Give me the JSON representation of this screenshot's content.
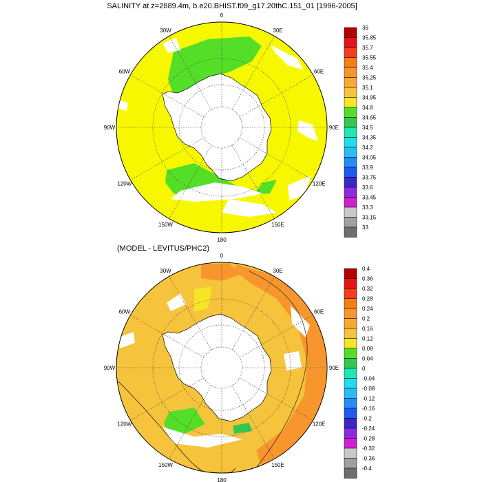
{
  "page_title": "SALINITY at z=2889.4m, b.e20.BHIST.f09_g17.20thC.151_01 [1996-2005]",
  "chart_data": [
    {
      "type": "map",
      "projection": "south polar stereographic",
      "title": "SALINITY at z=2889.4m, b.e20.BHIST.f09_g17.20thC.151_01 [1996-2005]",
      "longitude_labels": [
        "0",
        "30E",
        "60E",
        "90E",
        "120E",
        "150E",
        "180",
        "150W",
        "120W",
        "90W",
        "60W",
        "30W"
      ],
      "colorbar": {
        "levels": [
          "36",
          "35.85",
          "35.7",
          "35.55",
          "35.4",
          "35.25",
          "35.1",
          "34.95",
          "34.8",
          "34.65",
          "34.5",
          "34.35",
          "34.2",
          "34.05",
          "33.9",
          "33.75",
          "33.6",
          "33.45",
          "33.3",
          "33.15",
          "33"
        ],
        "colors": [
          "#b40000",
          "#e61414",
          "#f53c1e",
          "#f77d14",
          "#f7962d",
          "#f5aa37",
          "#f5c33c",
          "#f7e628",
          "#55de28",
          "#32c850",
          "#1ee6b4",
          "#23dceb",
          "#28bef5",
          "#288cf5",
          "#1e5af0",
          "#3c28c8",
          "#8c2ddc",
          "#d21ed2",
          "#c8c8c8",
          "#a0a0a0",
          "#6e6e6e"
        ]
      },
      "dominant_field_color": "#f7f700",
      "secondary_field_color": "#55de28"
    },
    {
      "type": "map",
      "projection": "south polar stereographic",
      "title": "(MODEL - LEVITUS/PHC2)",
      "longitude_labels": [
        "0",
        "30E",
        "60E",
        "90E",
        "120E",
        "150E",
        "180",
        "150W",
        "120W",
        "90W",
        "60W",
        "30W"
      ],
      "colorbar": {
        "levels": [
          "0.4",
          "0.36",
          "0.32",
          "0.28",
          "0.24",
          "0.2",
          "0.16",
          "0.12",
          "0.08",
          "0.04",
          "0",
          "-0.04",
          "-0.08",
          "-0.12",
          "-0.16",
          "-0.2",
          "-0.24",
          "-0.28",
          "-0.32",
          "-0.36",
          "-0.4"
        ],
        "colors": [
          "#b40000",
          "#e61414",
          "#f53c1e",
          "#f77d14",
          "#f7962d",
          "#f5aa37",
          "#f5c33c",
          "#f7e628",
          "#55de28",
          "#32c850",
          "#1ee6b4",
          "#23dceb",
          "#28bef5",
          "#288cf5",
          "#1e5af0",
          "#3c28c8",
          "#8c2ddc",
          "#d21ed2",
          "#c8c8c8",
          "#a0a0a0",
          "#6e6e6e"
        ]
      },
      "dominant_field_color": "#f5c33c",
      "secondary_field_color": "#f7962d"
    }
  ]
}
